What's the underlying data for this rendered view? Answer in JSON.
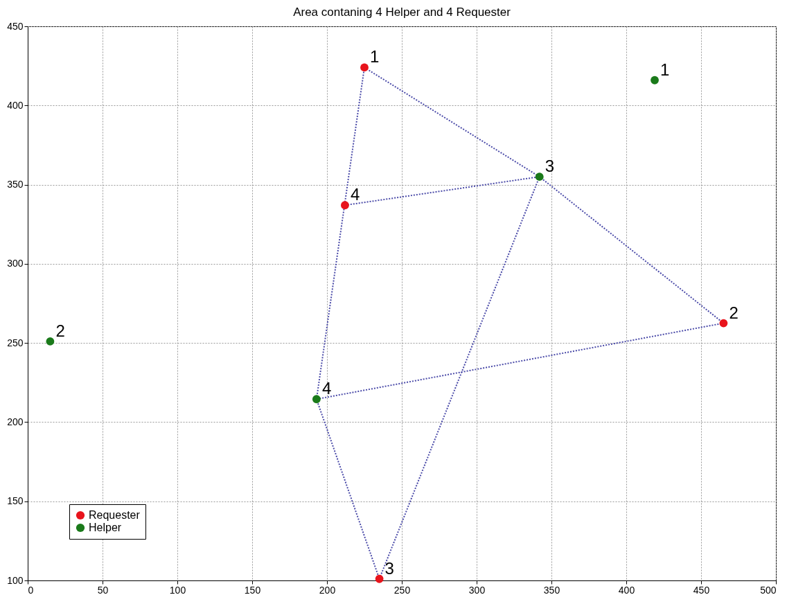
{
  "chart_data": {
    "type": "scatter",
    "title": "Area contaning 4 Helper and 4 Requester",
    "xlim": [
      0,
      500
    ],
    "xticks": [
      0,
      50,
      100,
      150,
      200,
      250,
      300,
      350,
      400,
      450,
      500
    ],
    "ylim": [
      100,
      450
    ],
    "yticks": [
      100,
      150,
      200,
      250,
      300,
      350,
      400,
      450
    ],
    "grid": true,
    "legend": "bottom left",
    "line_style": "dotted",
    "series": [
      {
        "type": "line",
        "color": "#4a4aa8",
        "x": [
          212,
          342,
          225,
          193,
          235,
          342,
          465,
          193
        ],
        "values": [
          337,
          355,
          424,
          214.5,
          101,
          355,
          262.5,
          214.5
        ]
      },
      {
        "name": "Requester",
        "marker": "circle",
        "color": "#e8141c",
        "x": [
          225,
          465,
          235,
          212
        ],
        "values": [
          424,
          262.5,
          101,
          337
        ]
      },
      {
        "name": "Helper",
        "marker": "circle",
        "color": "#1a7a1a",
        "x": [
          419,
          15,
          342,
          193
        ],
        "values": [
          416,
          251,
          355,
          214.5
        ]
      }
    ],
    "annotations": [
      {
        "text": "1",
        "x": 225,
        "y": 424
      },
      {
        "text": "2",
        "x": 465,
        "y": 262.5
      },
      {
        "text": "3",
        "x": 235,
        "y": 101
      },
      {
        "text": "4",
        "x": 212,
        "y": 337
      },
      {
        "text": "1",
        "x": 419,
        "y": 416
      },
      {
        "text": "2",
        "x": 15,
        "y": 251
      },
      {
        "text": "3",
        "x": 342,
        "y": 355
      },
      {
        "text": "4",
        "x": 193,
        "y": 214.5
      }
    ]
  }
}
